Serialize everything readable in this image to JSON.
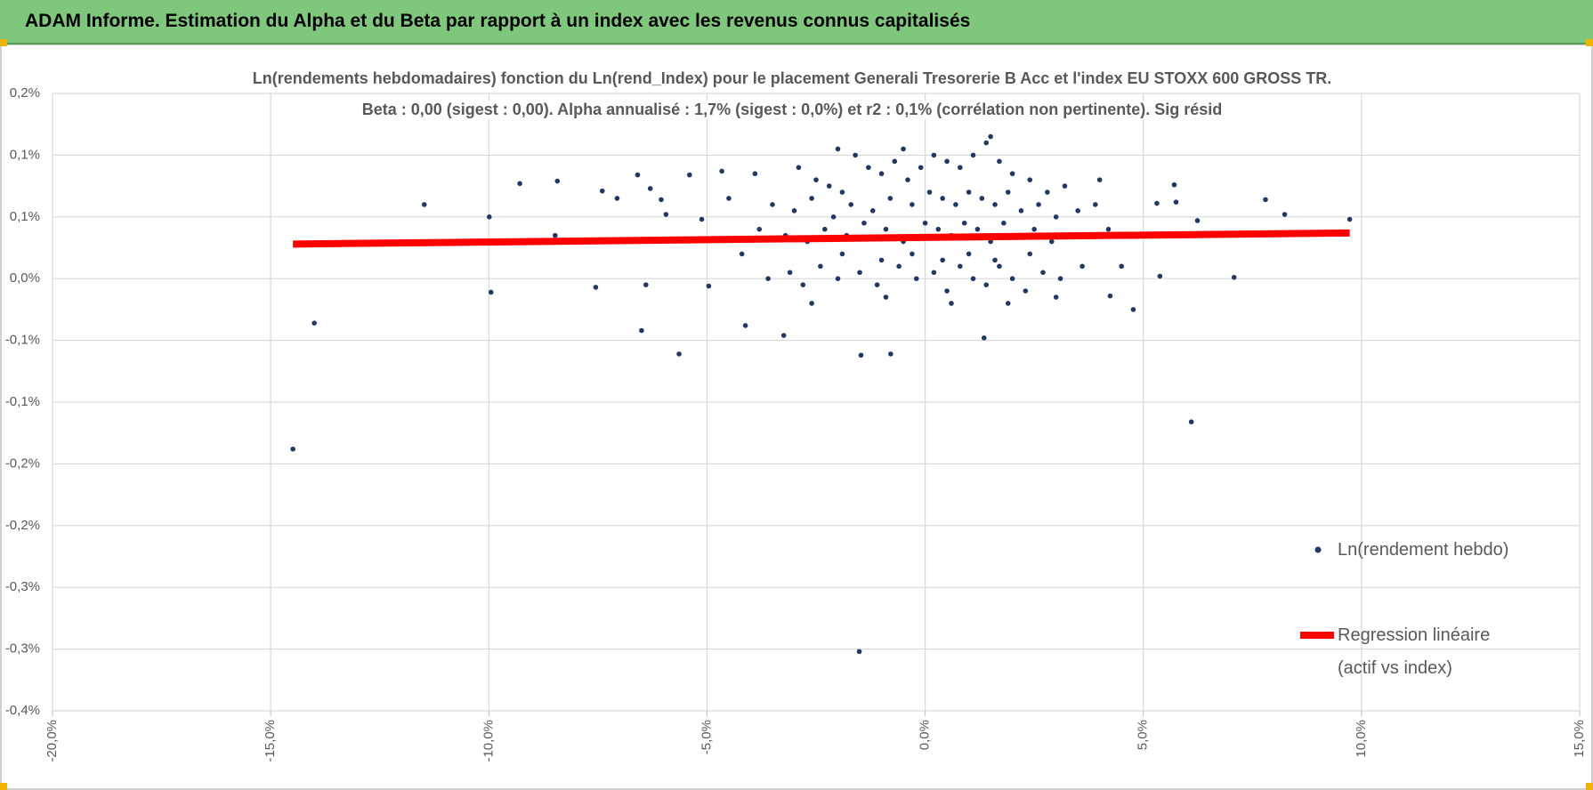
{
  "header": {
    "title": "ADAM Informe. Estimation du Alpha et du Beta par rapport à un index avec les revenus connus capitalisés"
  },
  "chart_data": {
    "type": "scatter",
    "title": "Ln(rendements hebdomadaires) fonction du Ln(rend_Index) pour le placement Generali Tresorerie B Acc et l'index EU STOXX 600 GROSS TR.",
    "subtitle": "Beta : 0,00 (sigest : 0,00).  Alpha annualisé : 1,7% (sigest : 0,0%) et r2 : 0,1% (corrélation non pertinente). Sig résid",
    "xlim": [
      -20,
      15
    ],
    "xticks": [
      {
        "value": -20,
        "label": "-20,0%"
      },
      {
        "value": -15,
        "label": "-15,0%"
      },
      {
        "value": -10,
        "label": "-10,0%"
      },
      {
        "value": -5,
        "label": "-5,0%"
      },
      {
        "value": 0,
        "label": "0,0%"
      },
      {
        "value": 5,
        "label": "5,0%"
      },
      {
        "value": 10,
        "label": "10,0%"
      },
      {
        "value": 15,
        "label": "15,0%"
      }
    ],
    "ylim": [
      -0.35,
      0.15
    ],
    "yticks": [
      {
        "value": 0.15,
        "label": "0,2%"
      },
      {
        "value": 0.1,
        "label": "0,1%"
      },
      {
        "value": 0.05,
        "label": "0,1%"
      },
      {
        "value": 0,
        "label": "0,0%"
      },
      {
        "value": -0.05,
        "label": "-0,1%"
      },
      {
        "value": -0.1,
        "label": "-0,1%"
      },
      {
        "value": -0.15,
        "label": "-0,2%"
      },
      {
        "value": -0.2,
        "label": "-0,2%"
      },
      {
        "value": -0.25,
        "label": "-0,3%"
      },
      {
        "value": -0.3,
        "label": "-0,3%"
      },
      {
        "value": -0.35,
        "label": "-0,4%"
      }
    ],
    "grid": true,
    "legend": "right",
    "series": [
      {
        "name": "Ln(rendement hebdo)",
        "color": "#203864",
        "x": [
          -14.49,
          -14.0,
          -11.48,
          -9.99,
          -9.95,
          -9.29,
          -8.48,
          -8.43,
          -7.55,
          -7.4,
          -7.06,
          -6.59,
          -6.5,
          -6.4,
          -6.3,
          -6.05,
          -5.94,
          -5.64,
          -5.4,
          -5.12,
          -4.96,
          -4.66,
          -4.12,
          -3.24,
          1.35,
          -1.47,
          -0.79,
          -1.51,
          6.1,
          4.77,
          5.71,
          5.75,
          6.24,
          5.38,
          7.08,
          7.8,
          8.24,
          9.73,
          4.24,
          5.31,
          -2.9,
          -2.5,
          -2.2,
          -1.9,
          -1.6,
          -1.3,
          -1.0,
          -0.7,
          -0.4,
          -0.1,
          0.2,
          0.5,
          0.8,
          1.1,
          1.4,
          1.7,
          2.0,
          2.4,
          2.8,
          3.2,
          -3.5,
          -3.0,
          -2.6,
          -2.1,
          -1.7,
          -1.2,
          -0.8,
          -0.3,
          0.1,
          0.4,
          0.7,
          1.0,
          1.3,
          1.6,
          1.9,
          2.2,
          2.6,
          3.0,
          3.5,
          3.9,
          -3.8,
          -3.2,
          -2.7,
          -2.3,
          -1.8,
          -1.4,
          -0.9,
          -0.5,
          0.0,
          0.3,
          0.6,
          0.9,
          1.2,
          1.5,
          1.8,
          2.1,
          2.5,
          2.9,
          3.3,
          4.2,
          -3.6,
          -3.1,
          -2.8,
          -2.4,
          -2.0,
          -1.5,
          -1.1,
          -0.6,
          -0.2,
          0.2,
          0.5,
          0.8,
          1.1,
          1.4,
          1.7,
          2.0,
          2.3,
          2.7,
          3.1,
          3.6,
          -1.9,
          -1.0,
          -0.3,
          0.4,
          1.0,
          1.6,
          2.4,
          -4.2,
          4.5,
          -2.6,
          -0.9,
          0.6,
          1.9,
          3.0,
          -4.5,
          4.0,
          -3.9,
          -2.0,
          1.5,
          -0.5
        ],
        "values": [
          -0.138,
          -0.036,
          0.06,
          0.05,
          -0.011,
          0.077,
          0.035,
          0.079,
          -0.007,
          0.071,
          0.065,
          0.084,
          -0.042,
          -0.005,
          0.073,
          0.064,
          0.052,
          -0.061,
          0.084,
          0.048,
          -0.006,
          0.087,
          -0.038,
          -0.046,
          -0.048,
          -0.062,
          -0.061,
          -0.302,
          -0.116,
          -0.025,
          0.076,
          0.062,
          0.047,
          0.002,
          0.001,
          0.064,
          0.052,
          0.048,
          -0.014,
          0.061,
          0.09,
          0.08,
          0.075,
          0.07,
          0.1,
          0.09,
          0.085,
          0.095,
          0.08,
          0.09,
          0.1,
          0.095,
          0.09,
          0.1,
          0.11,
          0.095,
          0.085,
          0.08,
          0.07,
          0.075,
          0.06,
          0.055,
          0.065,
          0.05,
          0.06,
          0.055,
          0.065,
          0.06,
          0.07,
          0.065,
          0.06,
          0.07,
          0.065,
          0.06,
          0.07,
          0.055,
          0.06,
          0.05,
          0.055,
          0.06,
          0.04,
          0.035,
          0.03,
          0.04,
          0.035,
          0.045,
          0.04,
          0.03,
          0.045,
          0.04,
          0.035,
          0.045,
          0.04,
          0.03,
          0.045,
          0.035,
          0.04,
          0.03,
          0.035,
          0.04,
          0.0,
          0.005,
          -0.005,
          0.01,
          0.0,
          0.005,
          -0.005,
          0.01,
          0.0,
          0.005,
          -0.01,
          0.01,
          0.0,
          -0.005,
          0.01,
          0.0,
          -0.01,
          0.005,
          0.0,
          0.01,
          0.02,
          0.015,
          0.02,
          0.015,
          0.02,
          0.015,
          0.02,
          0.02,
          0.01,
          -0.02,
          -0.015,
          -0.02,
          -0.02,
          -0.015,
          0.065,
          0.08,
          0.085,
          0.105,
          0.115,
          0.105
        ]
      },
      {
        "name": "Regression linéaire (actif vs index)",
        "color": "#ff0000",
        "type": "line",
        "x": [
          -14.49,
          9.73
        ],
        "values": [
          0.028,
          0.037
        ]
      }
    ]
  }
}
